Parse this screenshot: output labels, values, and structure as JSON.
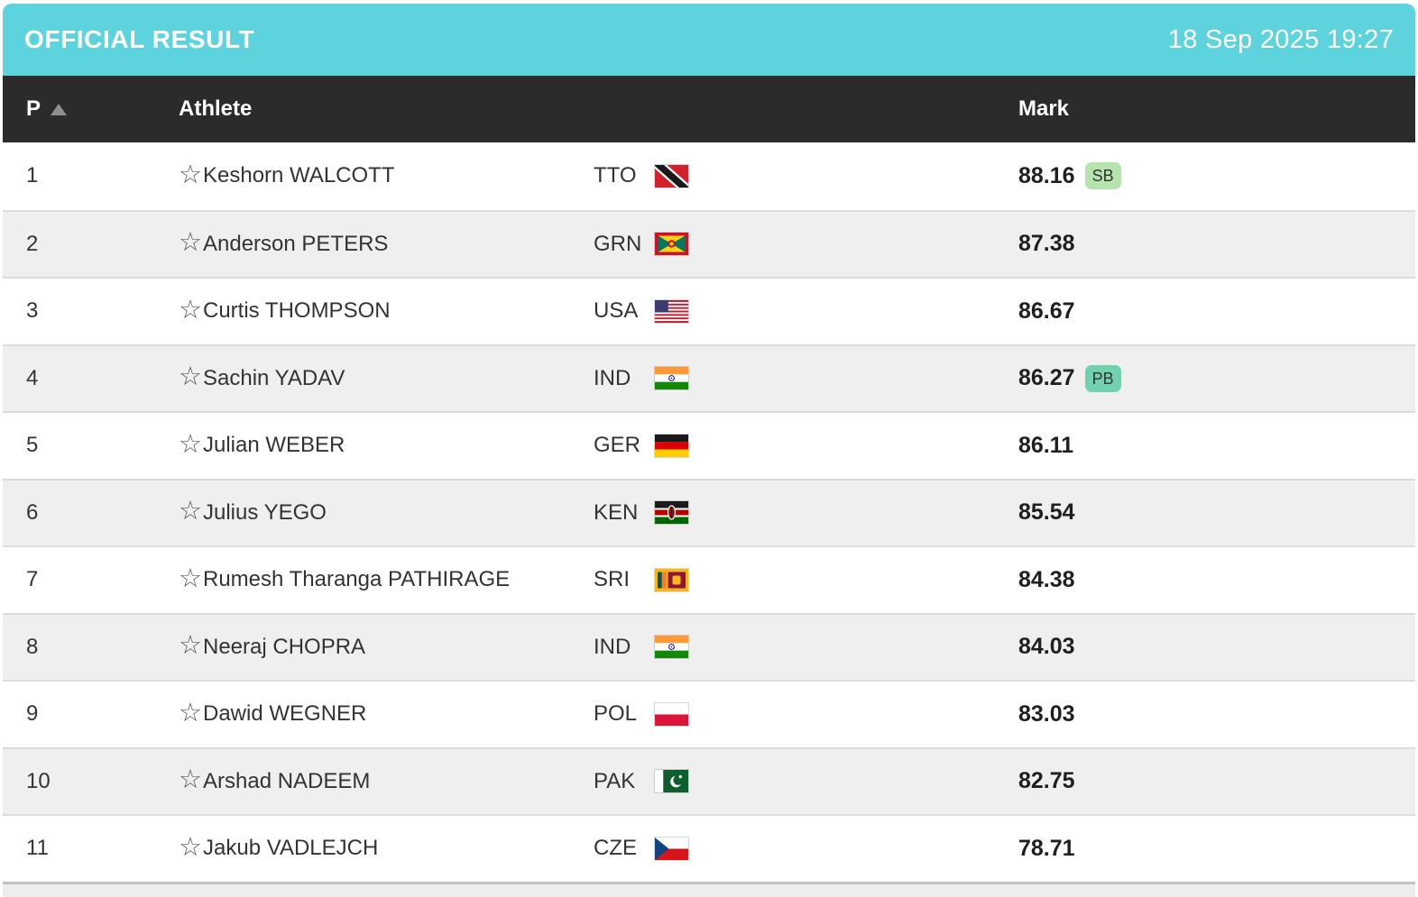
{
  "titlebar": {
    "title": "OFFICIAL RESULT",
    "timestamp": "18 Sep 2025 19:27"
  },
  "table": {
    "header": {
      "pos": "P",
      "athlete": "Athlete",
      "mark": "Mark"
    },
    "rows": [
      {
        "pos": "1",
        "name": "Keshorn WALCOTT",
        "country": "TTO",
        "mark": "88.16",
        "badge": "SB"
      },
      {
        "pos": "2",
        "name": "Anderson PETERS",
        "country": "GRN",
        "mark": "87.38",
        "badge": ""
      },
      {
        "pos": "3",
        "name": "Curtis THOMPSON",
        "country": "USA",
        "mark": "86.67",
        "badge": ""
      },
      {
        "pos": "4",
        "name": "Sachin YADAV",
        "country": "IND",
        "mark": "86.27",
        "badge": "PB"
      },
      {
        "pos": "5",
        "name": "Julian WEBER",
        "country": "GER",
        "mark": "86.11",
        "badge": ""
      },
      {
        "pos": "6",
        "name": "Julius YEGO",
        "country": "KEN",
        "mark": "85.54",
        "badge": ""
      },
      {
        "pos": "7",
        "name": "Rumesh Tharanga PATHIRAGE",
        "country": "SRI",
        "mark": "84.38",
        "badge": ""
      },
      {
        "pos": "8",
        "name": "Neeraj CHOPRA",
        "country": "IND",
        "mark": "84.03",
        "badge": ""
      },
      {
        "pos": "9",
        "name": "Dawid WEGNER",
        "country": "POL",
        "mark": "83.03",
        "badge": ""
      },
      {
        "pos": "10",
        "name": "Arshad NADEEM",
        "country": "PAK",
        "mark": "82.75",
        "badge": ""
      },
      {
        "pos": "11",
        "name": "Jakub VADLEJCH",
        "country": "CZE",
        "mark": "78.71",
        "badge": ""
      }
    ]
  },
  "icons": {
    "favorite_star": "☆"
  },
  "colors": {
    "accent": "#5dd3de",
    "header_bg": "#2b2b2b",
    "row_alt": "#efefef",
    "divider": "#dcdcdc",
    "text": "#333333",
    "mark_text": "#1f1f1f",
    "badge_sb": "#b7e3ae",
    "badge_pb": "#70d2ae"
  }
}
